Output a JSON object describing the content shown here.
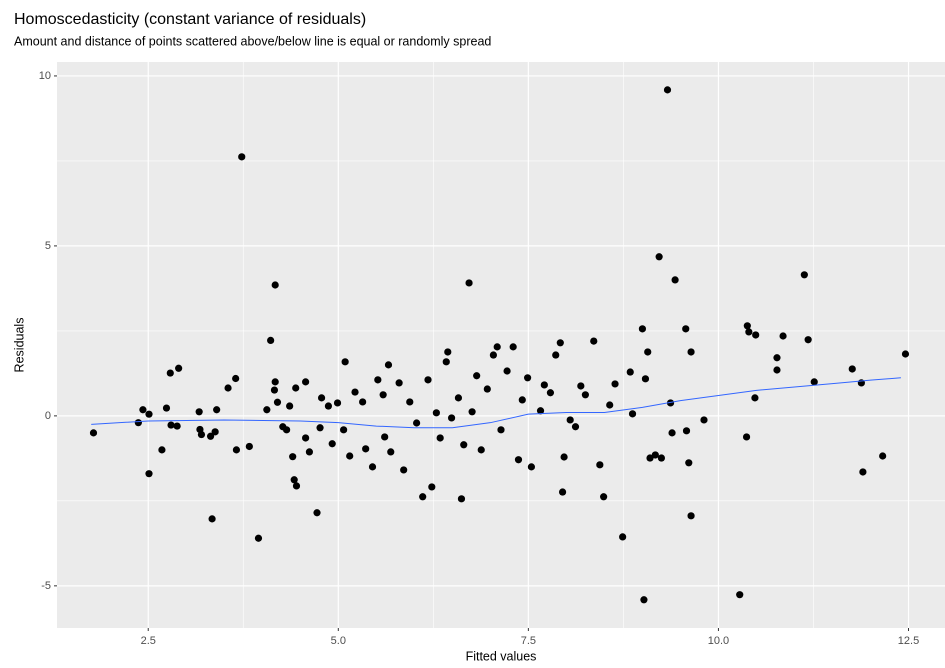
{
  "chart_data": {
    "type": "scatter",
    "title": "Homoscedasticity (constant variance of residuals)",
    "subtitle": "Amount and distance of points scattered above/below line is equal or randomly spread",
    "x_label": "Fitted values",
    "y_label": "Residuals",
    "xlim": [
      1.3,
      12.98
    ],
    "ylim": [
      -6.24,
      10.41
    ],
    "xticks": [
      {
        "value": 2.5,
        "label": "2.5"
      },
      {
        "value": 5,
        "label": "5.0"
      },
      {
        "value": 7.5,
        "label": "7.5"
      },
      {
        "value": 10,
        "label": "10.0"
      },
      {
        "value": 12.5,
        "label": "12.5"
      }
    ],
    "yticks": [
      -5,
      0,
      5,
      10
    ],
    "x_minor_ticks": [
      3.75,
      6.25,
      8.75,
      11.25
    ],
    "y_minor_ticks": [
      -2.5,
      2.5,
      7.5
    ],
    "grid": true,
    "series": [
      {
        "name": "Residuals",
        "color": "#000000",
        "x": [
          1.78,
          2.37,
          2.43,
          2.51,
          2.51,
          2.68,
          2.74,
          2.79,
          2.8,
          2.9,
          2.88,
          3.17,
          3.18,
          3.2,
          3.34,
          3.32,
          3.38,
          3.4,
          3.55,
          3.65,
          3.66,
          3.73,
          3.83,
          3.95,
          4.06,
          4.11,
          4.17,
          4.17,
          4.16,
          4.2,
          4.27,
          4.32,
          4.36,
          4.4,
          4.42,
          4.45,
          4.44,
          4.57,
          4.57,
          4.62,
          4.72,
          4.76,
          4.78,
          4.87,
          4.92,
          4.99,
          5.09,
          5.07,
          5.15,
          5.22,
          5.32,
          5.36,
          5.45,
          5.52,
          5.59,
          5.61,
          5.66,
          5.69,
          5.8,
          5.86,
          5.94,
          6.03,
          6.11,
          6.18,
          6.23,
          6.29,
          6.34,
          6.42,
          6.44,
          6.49,
          6.58,
          6.62,
          6.65,
          6.72,
          6.76,
          6.82,
          6.88,
          6.96,
          7.04,
          7.09,
          7.14,
          7.22,
          7.3,
          7.37,
          7.42,
          7.49,
          7.54,
          7.95,
          7.66,
          7.71,
          7.79,
          7.86,
          7.92,
          7.97,
          8.05,
          8.12,
          8.19,
          8.25,
          8.36,
          8.44,
          8.49,
          8.57,
          8.64,
          8.74,
          8.84,
          8.87,
          9.0,
          9.02,
          9.04,
          9.07,
          9.1,
          9.17,
          9.22,
          9.25,
          9.33,
          9.37,
          9.39,
          9.43,
          9.57,
          9.58,
          9.61,
          9.64,
          9.64,
          9.81,
          10.28,
          10.37,
          10.38,
          10.4,
          10.49,
          10.48,
          10.77,
          10.77,
          10.85,
          11.13,
          11.18,
          11.26,
          11.76,
          11.88,
          11.9,
          12.16,
          12.46
        ],
        "values": [
          -0.5,
          -0.2,
          0.18,
          0.05,
          -1.7,
          -1.0,
          0.23,
          1.26,
          -0.27,
          1.4,
          -0.3,
          0.12,
          -0.4,
          -0.55,
          -3.03,
          -0.6,
          -0.47,
          0.18,
          0.82,
          1.1,
          -1.0,
          7.62,
          -0.9,
          -3.6,
          0.18,
          2.22,
          3.85,
          1.0,
          0.76,
          0.4,
          -0.32,
          -0.41,
          0.29,
          -1.2,
          -1.88,
          -2.06,
          0.82,
          1.0,
          -0.65,
          -1.06,
          -2.85,
          -0.35,
          0.53,
          0.29,
          -0.82,
          0.38,
          1.59,
          -0.41,
          -1.18,
          0.7,
          0.41,
          -0.97,
          -1.5,
          1.06,
          0.62,
          -0.62,
          1.5,
          -1.06,
          0.97,
          -1.59,
          0.41,
          -0.21,
          -2.38,
          1.06,
          -2.09,
          0.09,
          -0.65,
          1.59,
          1.88,
          -0.06,
          0.53,
          -2.44,
          -0.85,
          3.91,
          0.12,
          1.18,
          -1.0,
          0.79,
          1.79,
          2.03,
          -0.41,
          1.32,
          2.03,
          -1.29,
          0.47,
          1.12,
          -1.5,
          -2.24,
          0.15,
          0.91,
          0.68,
          1.79,
          2.15,
          -1.21,
          -0.12,
          -0.32,
          0.88,
          0.62,
          2.2,
          -1.44,
          -2.38,
          0.32,
          0.94,
          -3.56,
          1.29,
          0.06,
          2.56,
          -5.41,
          1.09,
          1.88,
          -1.24,
          -1.15,
          4.68,
          -1.24,
          9.59,
          0.38,
          -0.5,
          4.0,
          2.56,
          -0.44,
          -1.38,
          1.88,
          -2.94,
          -0.12,
          -5.26,
          -0.62,
          2.65,
          2.47,
          2.38,
          0.53,
          1.71,
          1.35,
          2.35,
          4.15,
          2.24,
          1.0,
          1.38,
          0.97,
          -1.65,
          -1.18,
          1.82
        ]
      }
    ],
    "smooth": {
      "color": "#3366ff",
      "x": [
        1.75,
        2.5,
        3.5,
        4.5,
        5.0,
        5.5,
        6.0,
        6.5,
        7.0,
        7.5,
        8.0,
        8.5,
        9.0,
        9.5,
        10.0,
        10.5,
        11.0,
        11.5,
        12.0,
        12.4
      ],
      "values": [
        -0.25,
        -0.15,
        -0.12,
        -0.15,
        -0.2,
        -0.3,
        -0.35,
        -0.35,
        -0.2,
        0.05,
        0.1,
        0.1,
        0.25,
        0.45,
        0.6,
        0.75,
        0.85,
        0.95,
        1.05,
        1.12
      ]
    }
  }
}
